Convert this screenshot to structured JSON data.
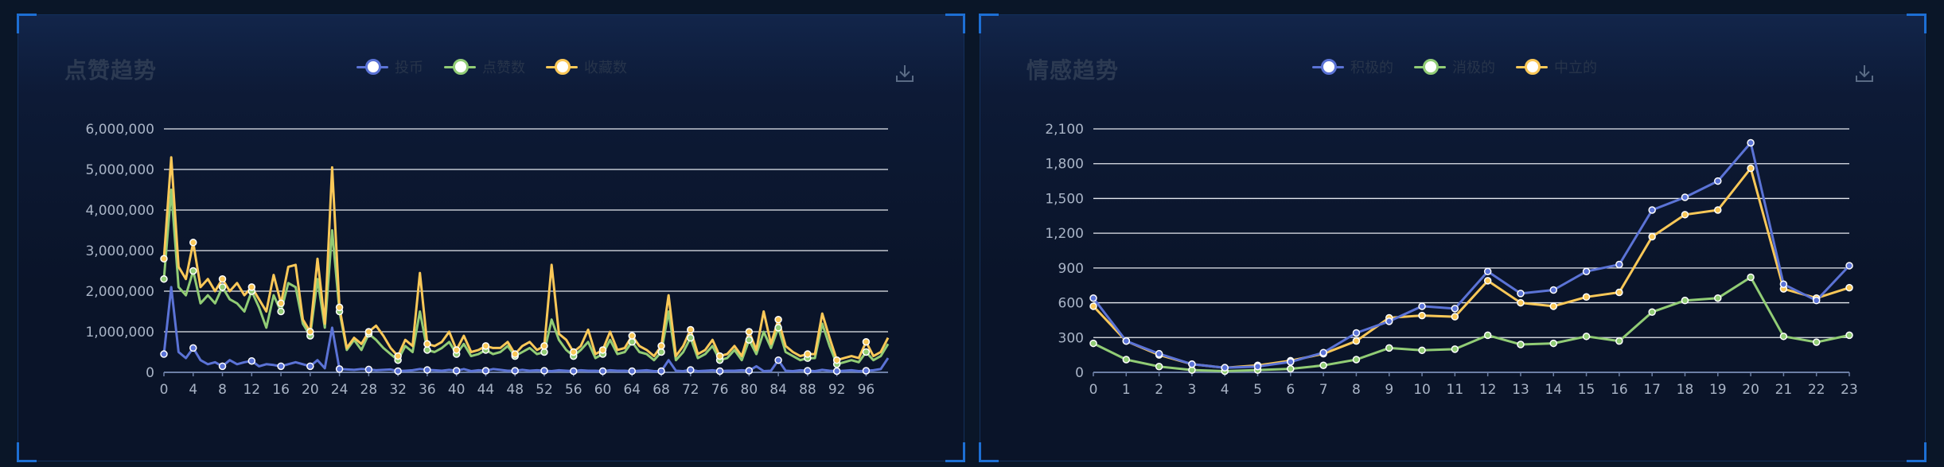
{
  "chart_data": [
    {
      "type": "line",
      "title": "点赞趋势",
      "xlim": [
        0,
        99
      ],
      "ylim": [
        0,
        6000000
      ],
      "y_ticks": [
        "0",
        "1,000,000",
        "2,000,000",
        "3,000,000",
        "4,000,000",
        "5,000,000",
        "6,000,000"
      ],
      "x_ticks": [
        "0",
        "4",
        "8",
        "12",
        "16",
        "20",
        "24",
        "28",
        "32",
        "36",
        "40",
        "44",
        "48",
        "52",
        "56",
        "60",
        "64",
        "68",
        "72",
        "76",
        "80",
        "84",
        "88",
        "92",
        "96"
      ],
      "grid": true,
      "legend_position": "top-center",
      "series": [
        {
          "name": "投币",
          "color": "#5b73d6",
          "values": [
            450000,
            2100000,
            500000,
            350000,
            600000,
            300000,
            200000,
            250000,
            150000,
            300000,
            200000,
            250000,
            280000,
            150000,
            200000,
            180000,
            150000,
            200000,
            250000,
            200000,
            150000,
            300000,
            100000,
            1100000,
            80000,
            70000,
            60000,
            80000,
            70000,
            50000,
            60000,
            70000,
            30000,
            40000,
            50000,
            80000,
            60000,
            50000,
            40000,
            60000,
            40000,
            80000,
            30000,
            50000,
            40000,
            80000,
            60000,
            40000,
            40000,
            60000,
            40000,
            50000,
            40000,
            30000,
            50000,
            40000,
            30000,
            50000,
            40000,
            40000,
            30000,
            50000,
            40000,
            40000,
            30000,
            40000,
            50000,
            30000,
            30000,
            300000,
            40000,
            30000,
            60000,
            30000,
            40000,
            50000,
            30000,
            40000,
            40000,
            50000,
            40000,
            150000,
            30000,
            40000,
            300000,
            40000,
            30000,
            50000,
            40000,
            30000,
            60000,
            40000,
            30000,
            40000,
            50000,
            30000,
            40000,
            50000,
            80000,
            350000
          ]
        },
        {
          "name": "点赞数",
          "color": "#91cc75",
          "values": [
            2300000,
            4500000,
            2100000,
            1900000,
            2500000,
            1700000,
            1900000,
            1700000,
            2100000,
            1800000,
            1700000,
            1500000,
            2000000,
            1600000,
            1100000,
            1900000,
            1500000,
            2200000,
            2100000,
            1200000,
            900000,
            2300000,
            1100000,
            3500000,
            1500000,
            550000,
            800000,
            550000,
            950000,
            800000,
            600000,
            450000,
            300000,
            650000,
            500000,
            1500000,
            550000,
            500000,
            600000,
            750000,
            450000,
            700000,
            400000,
            450000,
            550000,
            450000,
            500000,
            650000,
            400000,
            500000,
            600000,
            450000,
            500000,
            1300000,
            800000,
            550000,
            400000,
            550000,
            750000,
            350000,
            450000,
            800000,
            450000,
            500000,
            750000,
            500000,
            450000,
            300000,
            500000,
            1500000,
            300000,
            500000,
            850000,
            350000,
            450000,
            650000,
            300000,
            350000,
            550000,
            300000,
            800000,
            450000,
            1000000,
            600000,
            1100000,
            500000,
            400000,
            300000,
            350000,
            350000,
            1200000,
            650000,
            200000,
            250000,
            300000,
            250000,
            500000,
            300000,
            400000,
            700000
          ]
        },
        {
          "name": "收藏数",
          "color": "#fac858",
          "values": [
            2800000,
            5300000,
            2600000,
            2300000,
            3200000,
            2100000,
            2300000,
            2000000,
            2300000,
            2000000,
            2200000,
            1900000,
            2100000,
            1800000,
            1500000,
            2400000,
            1700000,
            2600000,
            2650000,
            1300000,
            1000000,
            2800000,
            1200000,
            5050000,
            1600000,
            600000,
            850000,
            700000,
            1000000,
            1150000,
            900000,
            600000,
            400000,
            800000,
            650000,
            2450000,
            700000,
            650000,
            750000,
            1000000,
            550000,
            900000,
            500000,
            550000,
            650000,
            600000,
            600000,
            750000,
            450000,
            650000,
            750000,
            550000,
            650000,
            2650000,
            950000,
            800000,
            500000,
            650000,
            1050000,
            450000,
            550000,
            1000000,
            550000,
            600000,
            900000,
            650000,
            550000,
            400000,
            650000,
            1900000,
            400000,
            650000,
            1050000,
            450000,
            550000,
            800000,
            400000,
            450000,
            650000,
            400000,
            1000000,
            550000,
            1500000,
            700000,
            1300000,
            650000,
            500000,
            400000,
            450000,
            450000,
            1450000,
            850000,
            300000,
            350000,
            400000,
            350000,
            750000,
            400000,
            500000,
            850000
          ]
        }
      ]
    },
    {
      "type": "line",
      "title": "情感趋势",
      "categories": [
        "0",
        "1",
        "2",
        "3",
        "4",
        "5",
        "6",
        "7",
        "8",
        "9",
        "10",
        "11",
        "12",
        "13",
        "14",
        "15",
        "16",
        "17",
        "18",
        "19",
        "20",
        "21",
        "22",
        "23"
      ],
      "ylim": [
        0,
        2100
      ],
      "y_ticks": [
        "0",
        "300",
        "600",
        "900",
        "1,200",
        "1,500",
        "1,800",
        "2,100"
      ],
      "grid": true,
      "legend_position": "top-center",
      "series": [
        {
          "name": "积极的",
          "color": "#5b73d6",
          "values": [
            640,
            270,
            160,
            70,
            40,
            50,
            90,
            170,
            340,
            440,
            570,
            550,
            870,
            680,
            710,
            870,
            930,
            1400,
            1510,
            1650,
            1980,
            760,
            620,
            920
          ]
        },
        {
          "name": "消极的",
          "color": "#91cc75",
          "values": [
            250,
            110,
            50,
            20,
            10,
            20,
            30,
            60,
            110,
            210,
            190,
            200,
            320,
            240,
            250,
            310,
            270,
            520,
            620,
            640,
            820,
            310,
            260,
            320
          ]
        },
        {
          "name": "中立的",
          "color": "#fac858",
          "values": [
            570,
            270,
            150,
            70,
            40,
            60,
            100,
            160,
            270,
            470,
            490,
            480,
            790,
            600,
            570,
            650,
            690,
            1170,
            1360,
            1400,
            1760,
            720,
            640,
            730
          ]
        }
      ]
    }
  ],
  "icons": {
    "download": "download-icon"
  }
}
